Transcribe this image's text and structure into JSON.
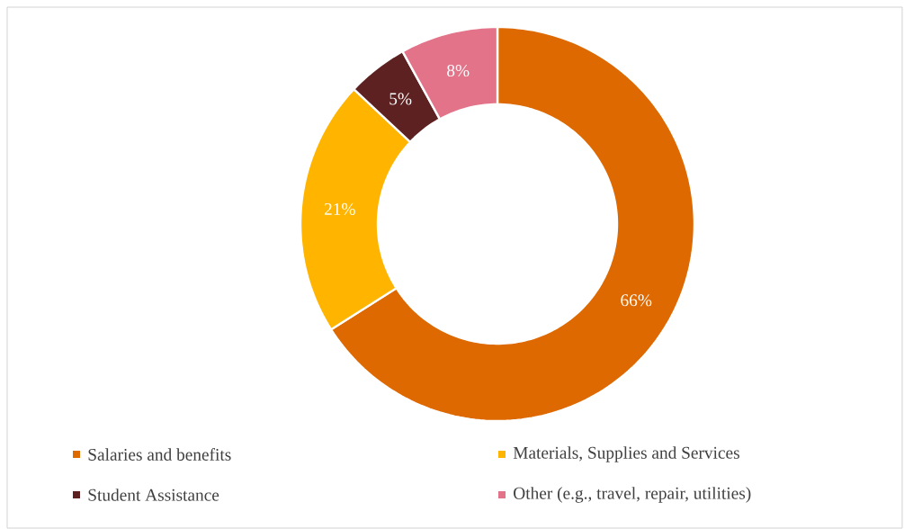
{
  "chart_data": {
    "type": "donut",
    "categories": [
      "Salaries and benefits",
      "Materials, Supplies and Services",
      "Student Assistance",
      "Other (e.g., travel, repair, utilities)"
    ],
    "values": [
      66,
      21,
      5,
      8
    ],
    "colors": [
      "#dd6900",
      "#ffb500",
      "#5c2120",
      "#e37389"
    ],
    "value_labels": [
      "66%",
      "21%",
      "5%",
      "8%"
    ],
    "legend": "bottom"
  }
}
